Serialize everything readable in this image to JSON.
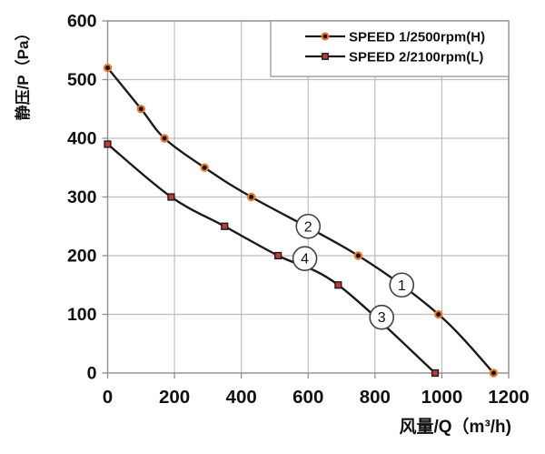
{
  "chart_data": {
    "type": "line",
    "title": "",
    "xlabel": "风量/Q（m³/h)",
    "ylabel": "静压/P（Pa）",
    "xlim": [
      0,
      1200
    ],
    "ylim": [
      0,
      600
    ],
    "x_ticks": [
      0,
      200,
      400,
      600,
      800,
      1000,
      1200
    ],
    "y_ticks": [
      0,
      100,
      200,
      300,
      400,
      500,
      600
    ],
    "grid": true,
    "legend_position": "top-right",
    "series": [
      {
        "name": "SPEED 1/2500rpm(H)",
        "marker": "circle",
        "points": [
          [
            0,
            520
          ],
          [
            100,
            450
          ],
          [
            170,
            400
          ],
          [
            290,
            350
          ],
          [
            430,
            300
          ],
          [
            750,
            200
          ],
          [
            990,
            100
          ],
          [
            1155,
            0
          ]
        ]
      },
      {
        "name": "SPEED 2/2100rpm(L)",
        "marker": "square",
        "points": [
          [
            0,
            390
          ],
          [
            190,
            300
          ],
          [
            350,
            250
          ],
          [
            510,
            200
          ],
          [
            690,
            150
          ],
          [
            980,
            0
          ]
        ]
      }
    ],
    "annotations": [
      {
        "text": "1",
        "x": 880,
        "y": 150
      },
      {
        "text": "2",
        "x": 600,
        "y": 250
      },
      {
        "text": "3",
        "x": 820,
        "y": 95
      },
      {
        "text": "4",
        "x": 590,
        "y": 195
      }
    ]
  },
  "colors": {
    "curve": "#1a1a1a",
    "grid": "#bdbdbd",
    "frame": "#8f8f8f",
    "text": "#111111",
    "marker_circle_fill": "#141414",
    "marker_circle_edge": "#e8782d",
    "marker_square_fill": "#c23b33",
    "marker_square_edge": "#1a1a1a",
    "annotation_stroke": "#404040",
    "annotation_fill": "#ffffff",
    "legend_bg": "#ffffff",
    "legend_border": "#8f8f8f"
  }
}
